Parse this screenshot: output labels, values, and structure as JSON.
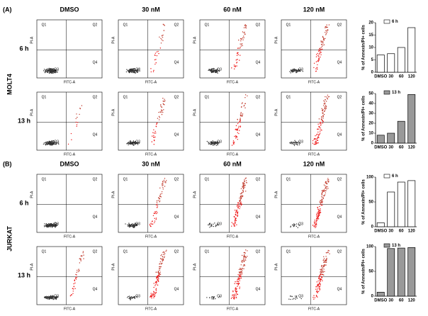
{
  "panels": [
    {
      "label": "(A)",
      "cell_line": "MOLT4",
      "columns": [
        "DMSO",
        "30 nM",
        "60 nM",
        "120 nM"
      ],
      "rows": [
        "6 h",
        "13 h"
      ]
    },
    {
      "label": "(B)",
      "cell_line": "JURKAT",
      "columns": [
        "DMSO",
        "30 nM",
        "60 nM",
        "120 nM"
      ],
      "rows": [
        "6 h",
        "13 h"
      ]
    }
  ],
  "flow": {
    "quadrants": [
      "Q1",
      "Q2",
      "Q3",
      "Q4"
    ],
    "x_label": "FITC-A",
    "y_label": "PI-A"
  },
  "chart_data": [
    {
      "type": "bar",
      "ylabel": "% of Annexin/PI+ cells",
      "categories": [
        "DMSO",
        "30",
        "60",
        "120"
      ],
      "series": [
        {
          "name": "6 h",
          "color": "#ffffff",
          "values": [
            7,
            7.5,
            10,
            18
          ]
        }
      ],
      "ylim": [
        0,
        20
      ],
      "yticks": [
        0,
        5,
        10,
        15,
        20
      ]
    },
    {
      "type": "bar",
      "ylabel": "% of Annexin/PI+ cells",
      "categories": [
        "DMSO",
        "30",
        "60",
        "120"
      ],
      "series": [
        {
          "name": "13 h",
          "color": "#999999",
          "values": [
            8,
            10,
            22,
            49
          ]
        }
      ],
      "ylim": [
        0,
        50
      ],
      "yticks": [
        0,
        10,
        20,
        30,
        40,
        50
      ]
    },
    {
      "type": "bar",
      "ylabel": "% of Annexin/PI+ cells",
      "categories": [
        "DMSO",
        "30",
        "60",
        "120"
      ],
      "series": [
        {
          "name": "6 h",
          "color": "#ffffff",
          "values": [
            8,
            70,
            90,
            93
          ]
        }
      ],
      "ylim": [
        0,
        100
      ],
      "yticks": [
        0,
        50,
        100
      ]
    },
    {
      "type": "bar",
      "ylabel": "% of Annexin/PI+ cells",
      "categories": [
        "DMSO",
        "30",
        "60",
        "120"
      ],
      "series": [
        {
          "name": "13 h",
          "color": "#999999",
          "values": [
            8,
            96,
            97,
            98
          ]
        }
      ],
      "ylim": [
        0,
        100
      ],
      "yticks": [
        0,
        50,
        100
      ]
    }
  ]
}
